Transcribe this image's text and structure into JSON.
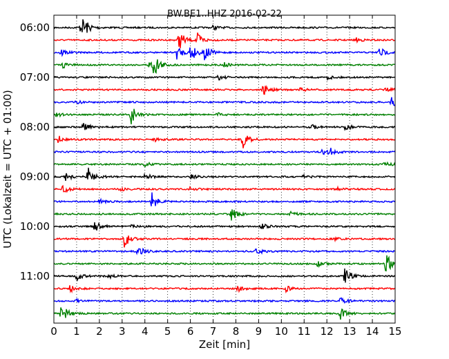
{
  "chart_data": {
    "type": "line",
    "title": "BW.BE1..HHZ 2016-02-22",
    "xlabel": "Zeit  [min]",
    "ylabel": "UTC (Lokalzeit = UTC + 01:00)",
    "xlim": [
      0,
      15
    ],
    "x_ticks": [
      "0",
      "1",
      "2",
      "3",
      "4",
      "5",
      "6",
      "7",
      "8",
      "9",
      "10",
      "11",
      "12",
      "13",
      "14",
      "15"
    ],
    "y_ticks": [
      "06:00",
      "07:00",
      "08:00",
      "09:00",
      "10:00",
      "11:00"
    ],
    "grid": "vertical dotted",
    "colors": [
      "#000000",
      "#ff0000",
      "#0000ff",
      "#008000"
    ],
    "trace_interval_min": 15,
    "start_time": "06:00",
    "series": [
      {
        "label": "06:00",
        "color": "#000000",
        "events": [
          [
            1.3,
            14
          ],
          [
            1.15,
            5
          ],
          [
            7.0,
            3
          ]
        ]
      },
      {
        "label": "06:15",
        "color": "#ff0000",
        "events": [
          [
            5.5,
            14
          ],
          [
            6.3,
            10
          ],
          [
            13.3,
            3
          ]
        ]
      },
      {
        "label": "06:30",
        "color": "#0000ff",
        "events": [
          [
            0.3,
            6
          ],
          [
            5.4,
            10
          ],
          [
            6.0,
            14
          ],
          [
            6.6,
            13
          ],
          [
            14.3,
            8
          ]
        ]
      },
      {
        "label": "06:45",
        "color": "#008000",
        "events": [
          [
            0.4,
            4
          ],
          [
            4.4,
            16
          ],
          [
            4.2,
            6
          ],
          [
            7.5,
            3
          ]
        ]
      },
      {
        "label": "07:00",
        "color": "#000000",
        "events": [
          [
            7.2,
            4
          ],
          [
            12.0,
            3
          ]
        ]
      },
      {
        "label": "07:15",
        "color": "#ff0000",
        "events": [
          [
            9.2,
            8
          ],
          [
            10.8,
            3
          ],
          [
            14.6,
            4
          ]
        ]
      },
      {
        "label": "07:30",
        "color": "#0000ff",
        "events": [
          [
            14.8,
            8
          ],
          [
            1.0,
            3
          ]
        ]
      },
      {
        "label": "07:45",
        "color": "#008000",
        "events": [
          [
            3.4,
            14
          ],
          [
            0.1,
            3
          ],
          [
            7.2,
            3
          ]
        ]
      },
      {
        "label": "08:00",
        "color": "#000000",
        "events": [
          [
            1.3,
            6
          ],
          [
            11.3,
            4
          ],
          [
            12.8,
            5
          ]
        ]
      },
      {
        "label": "08:15",
        "color": "#ff0000",
        "events": [
          [
            8.3,
            14
          ],
          [
            0.2,
            5
          ],
          [
            4.4,
            3
          ]
        ]
      },
      {
        "label": "08:30",
        "color": "#0000ff",
        "events": [
          [
            12.1,
            7
          ],
          [
            11.8,
            4
          ]
        ]
      },
      {
        "label": "08:45",
        "color": "#008000",
        "events": [
          [
            14.5,
            5
          ],
          [
            4.0,
            3
          ]
        ]
      },
      {
        "label": "09:00",
        "color": "#000000",
        "events": [
          [
            1.5,
            16
          ],
          [
            0.5,
            6
          ],
          [
            4.0,
            5
          ],
          [
            6.0,
            3
          ],
          [
            10.9,
            4
          ]
        ]
      },
      {
        "label": "09:15",
        "color": "#ff0000",
        "events": [
          [
            0.4,
            6
          ],
          [
            2.9,
            4
          ],
          [
            6.0,
            3
          ],
          [
            12.5,
            3
          ]
        ]
      },
      {
        "label": "09:30",
        "color": "#0000ff",
        "events": [
          [
            4.3,
            14
          ],
          [
            2.0,
            3
          ]
        ]
      },
      {
        "label": "09:45",
        "color": "#008000",
        "events": [
          [
            7.8,
            10
          ],
          [
            10.4,
            3
          ]
        ]
      },
      {
        "label": "10:00",
        "color": "#000000",
        "events": [
          [
            1.8,
            8
          ],
          [
            9.1,
            5
          ],
          [
            3.4,
            3
          ]
        ]
      },
      {
        "label": "10:15",
        "color": "#ff0000",
        "events": [
          [
            3.1,
            12
          ],
          [
            12.4,
            3
          ]
        ]
      },
      {
        "label": "10:30",
        "color": "#0000ff",
        "events": [
          [
            3.7,
            8
          ],
          [
            8.9,
            5
          ]
        ]
      },
      {
        "label": "10:45",
        "color": "#008000",
        "events": [
          [
            14.6,
            16
          ],
          [
            11.6,
            4
          ]
        ]
      },
      {
        "label": "11:00",
        "color": "#000000",
        "events": [
          [
            12.8,
            14
          ],
          [
            1.0,
            6
          ],
          [
            2.4,
            3
          ]
        ]
      },
      {
        "label": "11:15",
        "color": "#ff0000",
        "events": [
          [
            0.7,
            6
          ],
          [
            8.1,
            4
          ],
          [
            10.2,
            4
          ]
        ]
      },
      {
        "label": "11:30",
        "color": "#0000ff",
        "events": [
          [
            12.6,
            6
          ],
          [
            0.9,
            3
          ]
        ]
      },
      {
        "label": "11:45",
        "color": "#008000",
        "events": [
          [
            0.3,
            16
          ],
          [
            12.6,
            8
          ]
        ]
      }
    ]
  }
}
